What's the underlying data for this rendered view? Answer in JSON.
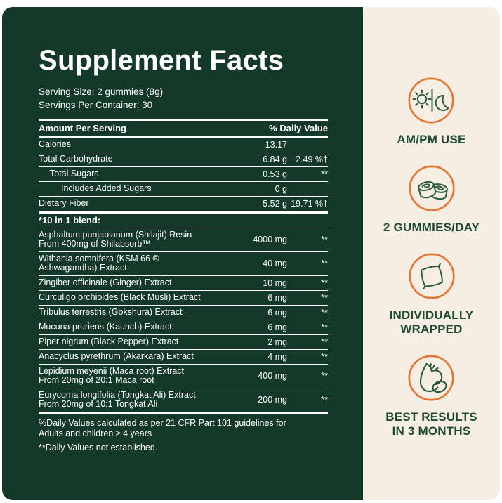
{
  "panel": {
    "title": "Supplement Facts",
    "serving_size": "Serving Size: 2 gummies (8g)",
    "servings_per_container": "Servings Per Container: 30",
    "table": {
      "col_amount": "Amount Per Serving",
      "col_dv": "% Daily Value",
      "rows": [
        {
          "name": "Calories",
          "amount": "13.17",
          "dv": "",
          "indent": 0
        },
        {
          "name": "Total Carbohydrate",
          "amount": "6.84 g",
          "dv": "2.49 %†",
          "indent": 0
        },
        {
          "name": "Total Sugars",
          "amount": "0.53 g",
          "dv": "**",
          "indent": 1
        },
        {
          "name": "Includes Added Sugars",
          "amount": "0 g",
          "dv": "",
          "indent": 2
        },
        {
          "name": "Dietary Fiber",
          "amount": "5.52 g",
          "dv": "19.71 %†",
          "indent": 0
        },
        {
          "name": "*10 in 1 blend:",
          "header": true,
          "thickTop": true,
          "amount": "",
          "dv": ""
        },
        {
          "name": "Asphaltum punjabianum (Shilajit) Resin",
          "sub": "From 400mg of Shilabsorb™",
          "amount": "4000 mg",
          "dv": "**"
        },
        {
          "name": "Withania somnifera (KSM 66 ® Ashwagandha) Extract",
          "amount": "40 mg",
          "dv": "**"
        },
        {
          "name": "Zingiber officinale (Ginger) Extract",
          "amount": "10 mg",
          "dv": "**"
        },
        {
          "name": "Curculigo orchioides (Black Musli) Extract",
          "amount": "6 mg",
          "dv": "**"
        },
        {
          "name": "Tribulus terrestris (Gokshura) Extract",
          "amount": "6 mg",
          "dv": "**"
        },
        {
          "name": "Mucuna pruriens (Kaunch) Extract",
          "amount": "6 mg",
          "dv": "**"
        },
        {
          "name": "Piper nigrum (Black Pepper) Extract",
          "amount": "2 mg",
          "dv": "**"
        },
        {
          "name": "Anacyclus pyrethrum (Akarkara) Extract",
          "amount": "4 mg",
          "dv": "**"
        },
        {
          "name": "Lepidium meyenii (Maca root) Extract",
          "sub": "From 20mg of 20:1 Maca root",
          "amount": "400 mg",
          "dv": "**"
        },
        {
          "name": "Eurycoma longifolia (Tongkat Ali) Extract",
          "sub": "From 20mg of 10:1 Tongkat Ali",
          "amount": "200 mg",
          "dv": "**",
          "thickBottom": true
        }
      ],
      "footnote_dv": "%Daily Values calculated as per 21 CFR Part 101 guidelines for\nAdults and children ≥ 4 years",
      "footnote_ne": "**Daily Values not established."
    }
  },
  "sidebar": {
    "sections": [
      {
        "icon": "sun-moon-icon",
        "label": "AM/PM USE"
      },
      {
        "icon": "gummies-icon",
        "label": "2 GUMMIES/DAY"
      },
      {
        "icon": "wrapped-candy-icon",
        "label": "INDIVIDUALLY\nWRAPPED"
      },
      {
        "icon": "bicep-icon",
        "label": "BEST RESULTS\nIN 3 MONTHS"
      }
    ]
  },
  "colors": {
    "panel_green": "#143928",
    "cream": "#f6ede3",
    "accent_orange": "#e8742f",
    "icon_green": "#2c5a41",
    "label_green": "#1d4b33",
    "text_white": "#ffffff"
  }
}
